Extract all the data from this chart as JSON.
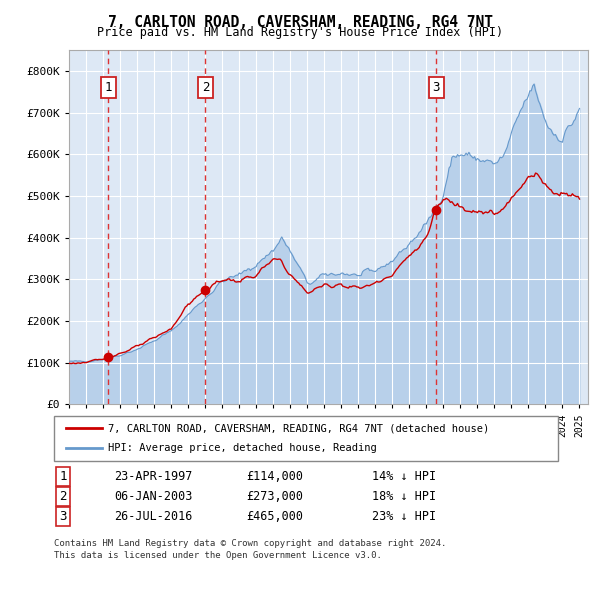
{
  "title": "7, CARLTON ROAD, CAVERSHAM, READING, RG4 7NT",
  "subtitle": "Price paid vs. HM Land Registry's House Price Index (HPI)",
  "legend_line1": "7, CARLTON ROAD, CAVERSHAM, READING, RG4 7NT (detached house)",
  "legend_line2": "HPI: Average price, detached house, Reading",
  "footer1": "Contains HM Land Registry data © Crown copyright and database right 2024.",
  "footer2": "This data is licensed under the Open Government Licence v3.0.",
  "transactions": [
    {
      "num": 1,
      "date": "23-APR-1997",
      "price": 114000,
      "hpi_diff": "14% ↓ HPI",
      "x": 1997.31
    },
    {
      "num": 2,
      "date": "06-JAN-2003",
      "price": 273000,
      "hpi_diff": "18% ↓ HPI",
      "x": 2003.02
    },
    {
      "num": 3,
      "date": "26-JUL-2016",
      "price": 465000,
      "hpi_diff": "23% ↓ HPI",
      "x": 2016.57
    }
  ],
  "ylim": [
    0,
    850000
  ],
  "yticks": [
    0,
    100000,
    200000,
    300000,
    400000,
    500000,
    600000,
    700000,
    800000
  ],
  "ytick_labels": [
    "£0",
    "£100K",
    "£200K",
    "£300K",
    "£400K",
    "£500K",
    "£600K",
    "£700K",
    "£800K"
  ],
  "xlim": [
    1995.0,
    2025.5
  ],
  "bg_color": "#dce9f8",
  "plot_bg": "#dde8f5",
  "grid_color": "#ffffff",
  "hpi_color": "#6699cc",
  "hpi_fill_color": "#b8d0ea",
  "price_color": "#cc0000",
  "vline_color": "#dd3333",
  "box_color": "#cc2222"
}
